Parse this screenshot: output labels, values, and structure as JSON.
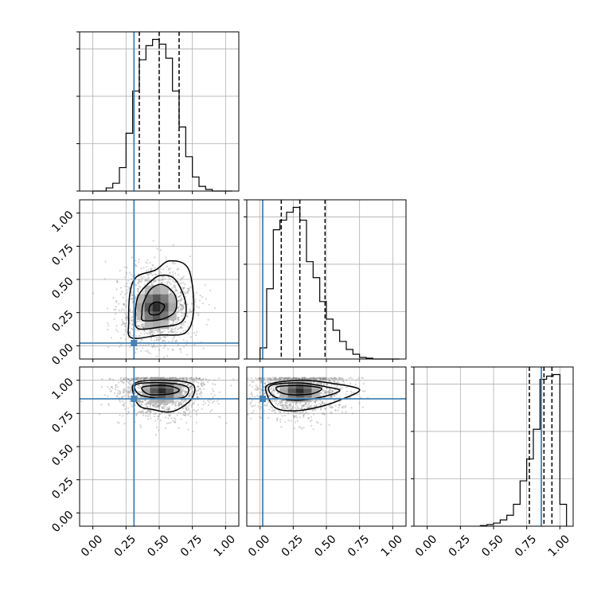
{
  "chart_data": {
    "type": "corner",
    "params": 3,
    "axis_range": [
      -0.1,
      1.1
    ],
    "tick_values": [
      0,
      0.25,
      0.5,
      0.75,
      1.0
    ],
    "tick_labels": [
      "0.00",
      "0.25",
      "0.50",
      "0.75",
      "1.00"
    ],
    "grid": true,
    "truth_color": "#4682b4",
    "truths": [
      0.31,
      0.02,
      0.86
    ],
    "histograms": [
      {
        "param": 0,
        "bin_edges": [
          0.0,
          0.05,
          0.1,
          0.15,
          0.2,
          0.25,
          0.3,
          0.35,
          0.4,
          0.45,
          0.5,
          0.55,
          0.6,
          0.65,
          0.7,
          0.75,
          0.8,
          0.85,
          0.9,
          0.95,
          1.0,
          1.05
        ],
        "counts": [
          0,
          0,
          0.02,
          0.05,
          0.15,
          0.37,
          0.64,
          0.84,
          0.93,
          0.97,
          0.94,
          0.85,
          0.64,
          0.41,
          0.22,
          0.09,
          0.03,
          0.01,
          0,
          0,
          0
        ],
        "quantiles": [
          0.35,
          0.5,
          0.65
        ]
      },
      {
        "param": 1,
        "bin_edges": [
          0.0,
          0.05,
          0.1,
          0.15,
          0.2,
          0.25,
          0.3,
          0.35,
          0.4,
          0.45,
          0.5,
          0.55,
          0.6,
          0.65,
          0.7,
          0.75,
          0.8,
          0.85,
          0.9,
          0.95,
          1.0,
          1.05
        ],
        "counts": [
          0.07,
          0.44,
          0.81,
          0.87,
          0.92,
          0.95,
          0.87,
          0.61,
          0.51,
          0.36,
          0.25,
          0.18,
          0.11,
          0.06,
          0.03,
          0.01,
          0.005,
          0,
          0,
          0,
          0
        ],
        "quantiles": [
          0.16,
          0.3,
          0.49
        ]
      },
      {
        "param": 2,
        "bin_edges": [
          0.4,
          0.45,
          0.5,
          0.55,
          0.6,
          0.65,
          0.7,
          0.75,
          0.8,
          0.85,
          0.9,
          0.95,
          1.0,
          1.05
        ],
        "counts": [
          0.004,
          0.01,
          0.02,
          0.04,
          0.07,
          0.14,
          0.29,
          0.43,
          0.62,
          0.94,
          0.96,
          0.97,
          0.14
        ],
        "quantiles": [
          0.77,
          0.88,
          0.94
        ]
      }
    ],
    "joints": [
      {
        "x_param": 0,
        "y_param": 1,
        "center": [
          0.48,
          0.29
        ],
        "spread": [
          0.11,
          0.12
        ],
        "contours": [
          {
            "level": "outer",
            "points": [
              [
                0.29,
                0.06
              ],
              [
                0.5,
                0.08
              ],
              [
                0.7,
                0.1
              ],
              [
                0.76,
                0.28
              ],
              [
                0.72,
                0.58
              ],
              [
                0.58,
                0.64
              ],
              [
                0.47,
                0.57
              ],
              [
                0.33,
                0.52
              ],
              [
                0.28,
                0.4
              ],
              [
                0.27,
                0.18
              ]
            ]
          },
          {
            "level": "mid",
            "points": [
              [
                0.34,
                0.13
              ],
              [
                0.5,
                0.14
              ],
              [
                0.67,
                0.18
              ],
              [
                0.7,
                0.32
              ],
              [
                0.62,
                0.5
              ],
              [
                0.51,
                0.53
              ],
              [
                0.42,
                0.47
              ],
              [
                0.34,
                0.37
              ],
              [
                0.32,
                0.22
              ]
            ]
          },
          {
            "level": "inner",
            "points": [
              [
                0.38,
                0.19
              ],
              [
                0.52,
                0.2
              ],
              [
                0.62,
                0.26
              ],
              [
                0.62,
                0.38
              ],
              [
                0.53,
                0.46
              ],
              [
                0.44,
                0.43
              ],
              [
                0.38,
                0.32
              ],
              [
                0.37,
                0.24
              ]
            ]
          },
          {
            "level": "core",
            "points": [
              [
                0.43,
                0.24
              ],
              [
                0.5,
                0.24
              ],
              [
                0.54,
                0.3
              ],
              [
                0.48,
                0.33
              ],
              [
                0.43,
                0.3
              ]
            ]
          }
        ]
      },
      {
        "x_param": 0,
        "y_param": 2,
        "center": [
          0.52,
          0.92
        ],
        "spread": [
          0.13,
          0.08
        ],
        "contours": [
          {
            "level": "outer",
            "points": [
              [
                0.32,
                0.98
              ],
              [
                0.55,
                1.0
              ],
              [
                0.75,
                0.97
              ],
              [
                0.75,
                0.87
              ],
              [
                0.66,
                0.79
              ],
              [
                0.57,
                0.76
              ],
              [
                0.45,
                0.78
              ],
              [
                0.36,
                0.8
              ],
              [
                0.31,
                0.88
              ]
            ]
          },
          {
            "level": "mid",
            "points": [
              [
                0.33,
                0.97
              ],
              [
                0.55,
                0.98
              ],
              [
                0.71,
                0.95
              ],
              [
                0.7,
                0.88
              ],
              [
                0.6,
                0.86
              ],
              [
                0.44,
                0.87
              ],
              [
                0.34,
                0.9
              ]
            ]
          },
          {
            "level": "inner",
            "points": [
              [
                0.38,
                0.95
              ],
              [
                0.55,
                0.96
              ],
              [
                0.65,
                0.93
              ],
              [
                0.6,
                0.9
              ],
              [
                0.45,
                0.89
              ],
              [
                0.39,
                0.91
              ]
            ]
          }
        ]
      },
      {
        "x_param": 1,
        "y_param": 2,
        "center": [
          0.3,
          0.92
        ],
        "spread": [
          0.14,
          0.08
        ],
        "contours": [
          {
            "level": "outer",
            "points": [
              [
                0.07,
                0.97
              ],
              [
                0.3,
                1.0
              ],
              [
                0.52,
                0.98
              ],
              [
                0.75,
                0.93
              ],
              [
                0.6,
                0.85
              ],
              [
                0.45,
                0.8
              ],
              [
                0.27,
                0.77
              ],
              [
                0.12,
                0.79
              ],
              [
                0.05,
                0.9
              ]
            ]
          },
          {
            "level": "mid",
            "points": [
              [
                0.08,
                0.96
              ],
              [
                0.3,
                0.98
              ],
              [
                0.5,
                0.95
              ],
              [
                0.6,
                0.92
              ],
              [
                0.45,
                0.87
              ],
              [
                0.25,
                0.85
              ],
              [
                0.1,
                0.88
              ]
            ]
          },
          {
            "level": "inner",
            "points": [
              [
                0.13,
                0.95
              ],
              [
                0.3,
                0.96
              ],
              [
                0.46,
                0.94
              ],
              [
                0.4,
                0.9
              ],
              [
                0.25,
                0.89
              ],
              [
                0.15,
                0.91
              ]
            ]
          }
        ]
      }
    ]
  }
}
